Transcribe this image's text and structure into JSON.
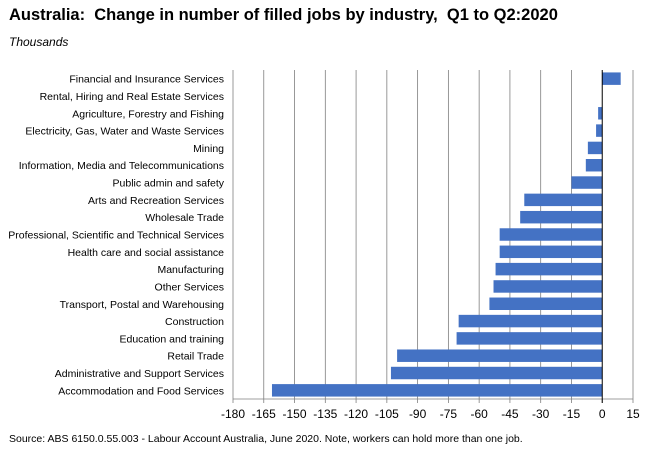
{
  "title": "Australia:  Change in number of filled jobs by industry,  Q1 to Q2:2020",
  "subtitle": "Thousands",
  "source": "Source: ABS 6150.0.55.003 - Labour Account Australia, June 2020.  Note, workers can hold more than one job.",
  "colors": {
    "bar": "#4472C4",
    "grid": "#7f7f7f"
  },
  "chart_data": {
    "type": "bar",
    "orientation": "horizontal",
    "categories": [
      "Financial and Insurance Services",
      "Rental, Hiring and Real Estate Services",
      "Agriculture, Forestry and Fishing",
      "Electricity, Gas, Water and Waste Services",
      "Mining",
      "Information, Media and Telecommunications",
      "Public admin and safety",
      "Arts and Recreation Services",
      "Wholesale Trade",
      "Professional, Scientific and Technical Services",
      "Health care and social assistance",
      "Manufacturing",
      "Other Services",
      "Transport, Postal and Warehousing",
      "Construction",
      "Education and training",
      "Retail Trade",
      "Administrative and Support Services",
      "Accommodation and Food Services"
    ],
    "values": [
      9,
      0,
      -2,
      -3,
      -7,
      -8,
      -15,
      -38,
      -40,
      -50,
      -50,
      -52,
      -53,
      -55,
      -70,
      -71,
      -100,
      -103,
      -161
    ],
    "xlim": [
      -180,
      15
    ],
    "xticks": [
      -180,
      -165,
      -150,
      -135,
      -120,
      -105,
      -90,
      -75,
      -60,
      -45,
      -30,
      -15,
      0,
      15
    ],
    "grid": true
  }
}
